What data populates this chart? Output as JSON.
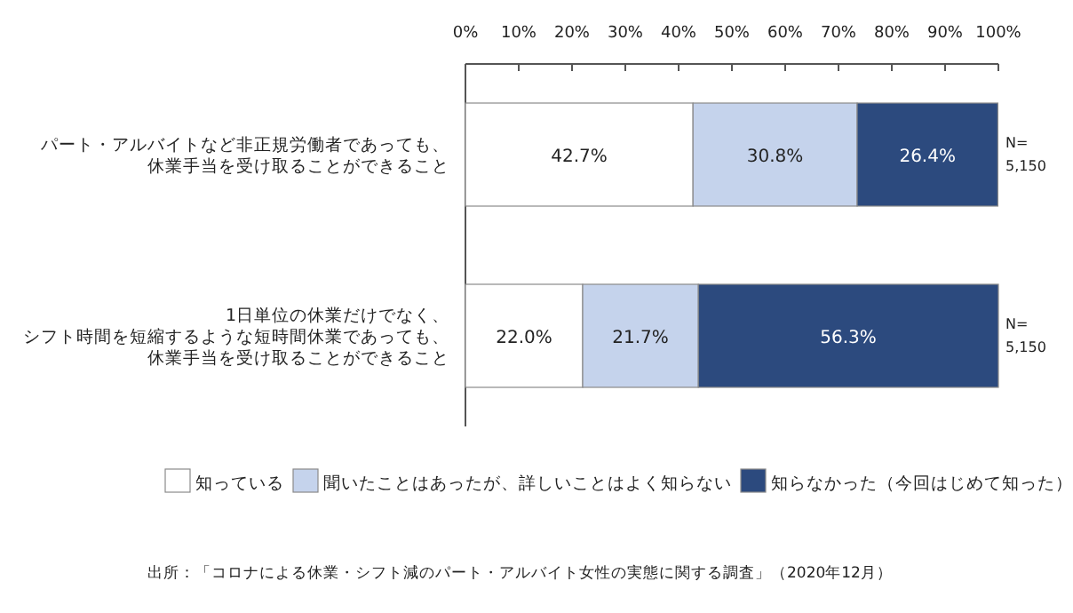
{
  "chart_data": {
    "type": "bar",
    "orientation": "horizontal",
    "stacked": true,
    "categories": [
      "パート・アルバイトなど非正規労働者であっても、休業手当を受け取ることができること",
      "1日単位の休業だけでなく、シフト時間を短縮するような短時間休業であっても、休業手当を受け取ることができること"
    ],
    "series": [
      {
        "name": "知っている",
        "color": "#ffffff",
        "values": [
          42.7,
          22.0
        ],
        "value_labels": [
          "42.7%",
          "22.0%"
        ]
      },
      {
        "name": "聞いたことはあったが、詳しいことはよく知らない",
        "color": "#c5d3ec",
        "values": [
          30.8,
          21.7
        ],
        "value_labels": [
          "30.8%",
          "21.7%"
        ]
      },
      {
        "name": "知らなかった（今回はじめて知った）",
        "color": "#2c4a7e",
        "values": [
          26.4,
          56.3
        ],
        "value_labels": [
          "26.4%",
          "56.3%"
        ]
      }
    ],
    "xlim": [
      0,
      100
    ],
    "xticks": [
      {
        "value": 0,
        "label": "0%"
      },
      {
        "value": 10,
        "label": "10%"
      },
      {
        "value": 20,
        "label": "20%"
      },
      {
        "value": 30,
        "label": "30%"
      },
      {
        "value": 40,
        "label": "40%"
      },
      {
        "value": 50,
        "label": "50%"
      },
      {
        "value": 60,
        "label": "60%"
      },
      {
        "value": 70,
        "label": "70%"
      },
      {
        "value": 80,
        "label": "80%"
      },
      {
        "value": 90,
        "label": "90%"
      },
      {
        "value": 100,
        "label": "100%"
      }
    ],
    "legend": "bottom",
    "annotations": [
      {
        "text": "N= 5,150",
        "x": 100,
        "y": "パート・アルバイトなど非正規労働者であっても、休業手当を受け取ることができること"
      },
      {
        "text": "N= 5,150",
        "x": 100,
        "y": "1日単位の休業だけでなく、シフト時間を短縮するような短時間休業であっても、休業手当を受け取ることができること"
      },
      "出所：「コロナによる休業・シフト減のパート・アルバイト女性の実態に関する調査」（2020年12月）"
    ]
  }
}
